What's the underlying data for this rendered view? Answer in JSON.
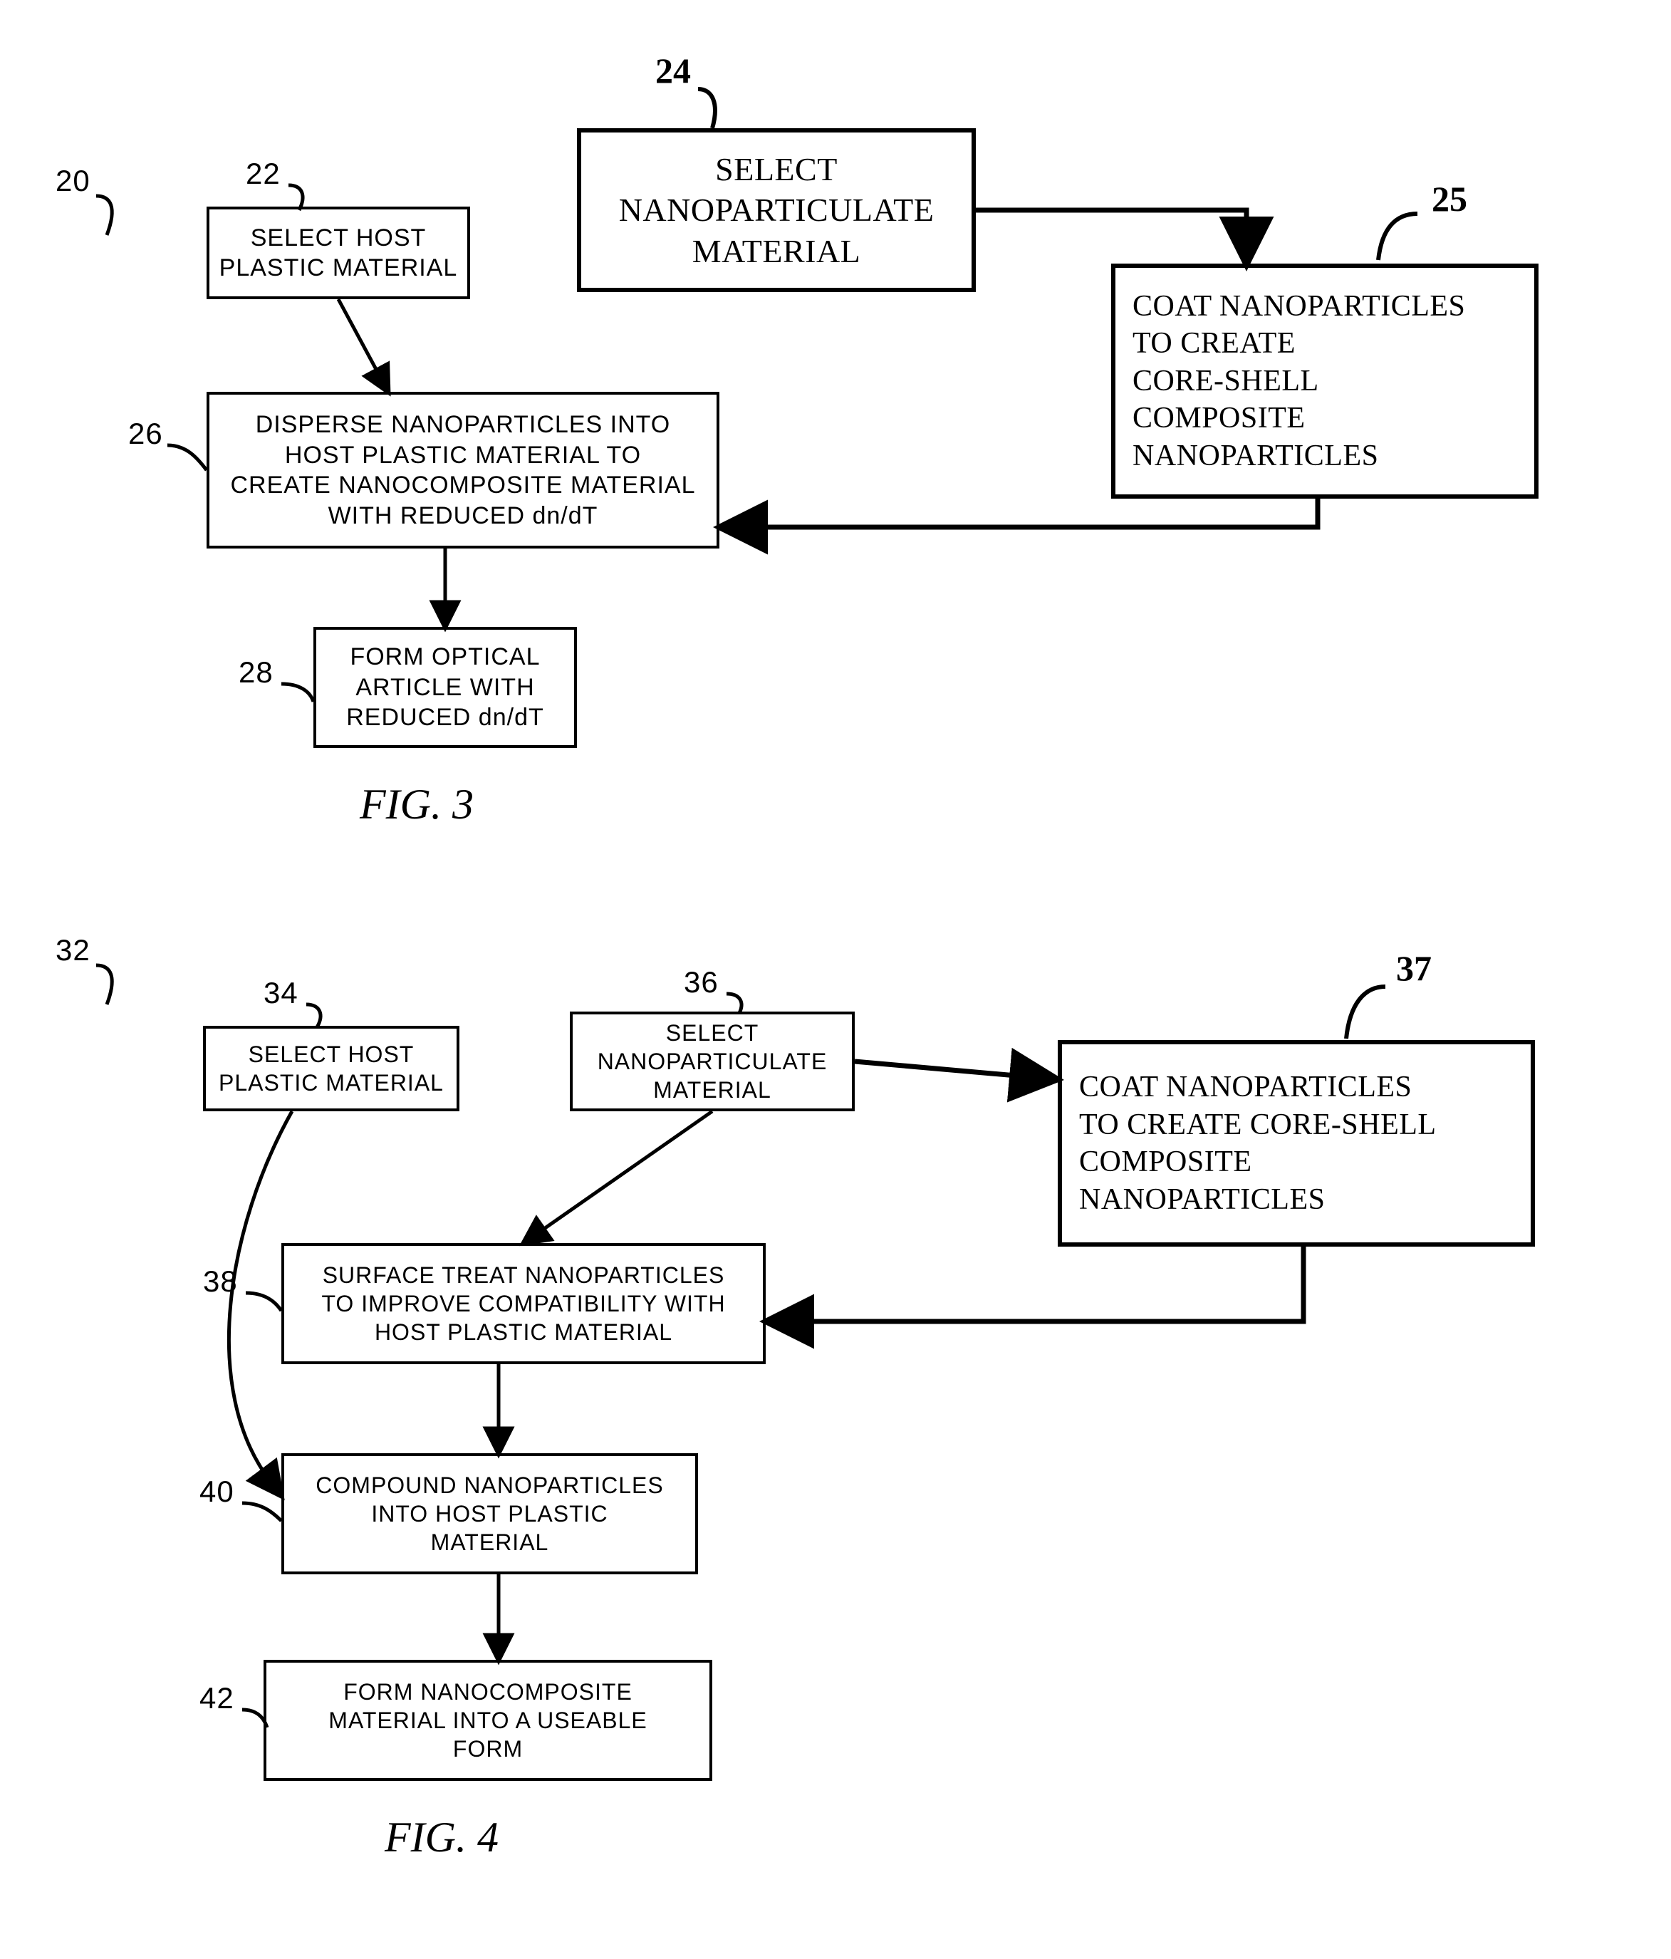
{
  "fig3": {
    "caption": "FIG. 3",
    "refs": {
      "r20": "20",
      "r22": "22",
      "r24": "24",
      "r25": "25",
      "r26": "26",
      "r28": "28"
    },
    "boxes": {
      "b22": {
        "text": "SELECT HOST\nPLASTIC MATERIAL",
        "style": "printed",
        "fontsize": 34
      },
      "b24": {
        "text": "SELECT\nNANOPARTICULATE\nMATERIAL",
        "style": "handwritten",
        "fontsize": 46
      },
      "b25": {
        "text": "COAT NANOPARTICLES\nTO CREATE\nCORE-SHELL\nCOMPOSITE\nNANOPARTICLES",
        "style": "handwritten",
        "fontsize": 42
      },
      "b26": {
        "text": "DISPERSE NANOPARTICLES INTO\nHOST PLASTIC MATERIAL TO\nCREATE NANOCOMPOSITE MATERIAL\nWITH REDUCED dn/dT",
        "style": "printed",
        "fontsize": 34
      },
      "b28": {
        "text": "FORM OPTICAL\nARTICLE WITH\nREDUCED dn/dT",
        "style": "printed",
        "fontsize": 34
      }
    }
  },
  "fig4": {
    "caption": "FIG. 4",
    "refs": {
      "r32": "32",
      "r34": "34",
      "r36": "36",
      "r37": "37",
      "r38": "38",
      "r40": "40",
      "r42": "42"
    },
    "boxes": {
      "b34": {
        "text": "SELECT HOST\nPLASTIC MATERIAL",
        "style": "printed",
        "fontsize": 32
      },
      "b36": {
        "text": "SELECT\nNANOPARTICULATE\nMATERIAL",
        "style": "printed",
        "fontsize": 32
      },
      "b37": {
        "text": "COAT NANOPARTICLES\nTO CREATE CORE-SHELL\nCOMPOSITE\nNANOPARTICLES",
        "style": "handwritten",
        "fontsize": 42
      },
      "b38": {
        "text": "SURFACE TREAT NANOPARTICLES\nTO IMPROVE COMPATIBILITY WITH\nHOST PLASTIC MATERIAL",
        "style": "printed",
        "fontsize": 32
      },
      "b40": {
        "text": "COMPOUND NANOPARTICLES\nINTO HOST PLASTIC\nMATERIAL",
        "style": "printed",
        "fontsize": 32
      },
      "b42": {
        "text": "FORM NANOCOMPOSITE\nMATERIAL INTO A USEABLE\nFORM",
        "style": "printed",
        "fontsize": 32
      }
    }
  },
  "colors": {
    "stroke": "#000000",
    "bg": "#ffffff"
  },
  "stroke_width": 4
}
